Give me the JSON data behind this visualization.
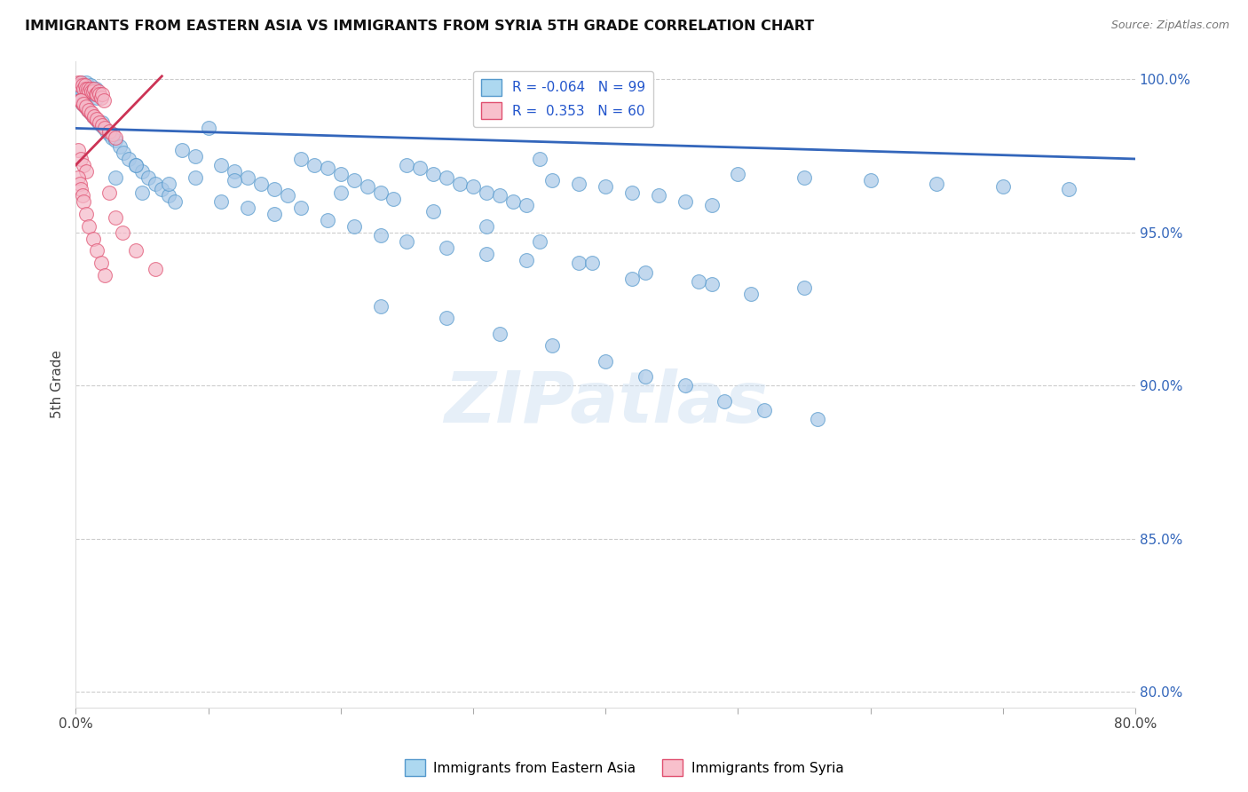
{
  "title": "IMMIGRANTS FROM EASTERN ASIA VS IMMIGRANTS FROM SYRIA 5TH GRADE CORRELATION CHART",
  "source": "Source: ZipAtlas.com",
  "ylabel": "5th Grade",
  "xlim": [
    0.0,
    0.8
  ],
  "ylim": [
    0.795,
    1.006
  ],
  "x_tick_pos": [
    0.0,
    0.1,
    0.2,
    0.3,
    0.4,
    0.5,
    0.6,
    0.7,
    0.8
  ],
  "x_tick_labels": [
    "0.0%",
    "",
    "",
    "",
    "",
    "",
    "",
    "",
    "80.0%"
  ],
  "y_tick_pos": [
    0.8,
    0.85,
    0.9,
    0.95,
    1.0
  ],
  "y_tick_labels": [
    "80.0%",
    "85.0%",
    "90.0%",
    "95.0%",
    "100.0%"
  ],
  "blue_R": "-0.064",
  "blue_N": "99",
  "pink_R": "0.353",
  "pink_N": "60",
  "blue_fill": "#a8c8e8",
  "blue_edge": "#5599cc",
  "pink_fill": "#f5b8c8",
  "pink_edge": "#e05070",
  "blue_line_color": "#3366bb",
  "pink_line_color": "#cc3355",
  "watermark": "ZIPatlas",
  "blue_x": [
    0.002,
    0.003,
    0.004,
    0.005,
    0.006,
    0.007,
    0.008,
    0.009,
    0.01,
    0.011,
    0.012,
    0.013,
    0.014,
    0.015,
    0.016,
    0.003,
    0.005,
    0.007,
    0.009,
    0.011,
    0.013,
    0.015,
    0.017,
    0.019,
    0.021,
    0.023,
    0.025,
    0.027,
    0.03,
    0.033,
    0.036,
    0.04,
    0.045,
    0.05,
    0.055,
    0.06,
    0.065,
    0.07,
    0.075,
    0.08,
    0.09,
    0.1,
    0.11,
    0.12,
    0.13,
    0.14,
    0.15,
    0.16,
    0.17,
    0.18,
    0.19,
    0.2,
    0.21,
    0.22,
    0.23,
    0.24,
    0.25,
    0.26,
    0.27,
    0.28,
    0.29,
    0.3,
    0.31,
    0.32,
    0.33,
    0.34,
    0.35,
    0.36,
    0.38,
    0.4,
    0.42,
    0.44,
    0.46,
    0.48,
    0.5,
    0.55,
    0.6,
    0.65,
    0.7,
    0.75,
    0.02,
    0.03,
    0.05,
    0.07,
    0.09,
    0.11,
    0.13,
    0.15,
    0.17,
    0.19,
    0.21,
    0.23,
    0.25,
    0.28,
    0.31,
    0.34,
    0.38,
    0.42,
    0.48,
    0.55
  ],
  "blue_y": [
    0.998,
    0.997,
    0.999,
    0.996,
    0.998,
    0.997,
    0.999,
    0.996,
    0.995,
    0.998,
    0.997,
    0.996,
    0.995,
    0.997,
    0.994,
    0.993,
    0.992,
    0.991,
    0.99,
    0.989,
    0.988,
    0.987,
    0.986,
    0.985,
    0.984,
    0.983,
    0.982,
    0.981,
    0.98,
    0.978,
    0.976,
    0.974,
    0.972,
    0.97,
    0.968,
    0.966,
    0.964,
    0.962,
    0.96,
    0.977,
    0.975,
    0.984,
    0.972,
    0.97,
    0.968,
    0.966,
    0.964,
    0.962,
    0.974,
    0.972,
    0.971,
    0.969,
    0.967,
    0.965,
    0.963,
    0.961,
    0.972,
    0.971,
    0.969,
    0.968,
    0.966,
    0.965,
    0.963,
    0.962,
    0.96,
    0.959,
    0.974,
    0.967,
    0.966,
    0.965,
    0.963,
    0.962,
    0.96,
    0.959,
    0.969,
    0.968,
    0.967,
    0.966,
    0.965,
    0.964,
    0.986,
    0.968,
    0.963,
    0.966,
    0.968,
    0.96,
    0.958,
    0.956,
    0.958,
    0.954,
    0.952,
    0.949,
    0.947,
    0.945,
    0.943,
    0.941,
    0.94,
    0.935,
    0.933,
    0.932
  ],
  "blue_y_outliers": [
    0.972,
    0.967,
    0.963,
    0.957,
    0.952,
    0.947,
    0.94,
    0.937,
    0.934,
    0.93,
    0.926,
    0.922,
    0.917,
    0.913,
    0.908,
    0.903,
    0.9,
    0.895,
    0.892,
    0.889
  ],
  "blue_x_outliers": [
    0.045,
    0.12,
    0.2,
    0.27,
    0.31,
    0.35,
    0.39,
    0.43,
    0.47,
    0.51,
    0.23,
    0.28,
    0.32,
    0.36,
    0.4,
    0.43,
    0.46,
    0.49,
    0.52,
    0.56
  ],
  "pink_x": [
    0.002,
    0.003,
    0.004,
    0.005,
    0.006,
    0.007,
    0.008,
    0.009,
    0.01,
    0.011,
    0.012,
    0.013,
    0.014,
    0.015,
    0.016,
    0.017,
    0.018,
    0.019,
    0.02,
    0.021,
    0.003,
    0.005,
    0.007,
    0.009,
    0.011,
    0.013,
    0.015,
    0.004,
    0.006,
    0.008,
    0.01,
    0.012,
    0.014,
    0.016,
    0.018,
    0.02,
    0.022,
    0.025,
    0.028,
    0.03,
    0.002,
    0.004,
    0.006,
    0.008,
    0.002,
    0.003,
    0.004,
    0.005,
    0.006,
    0.008,
    0.01,
    0.013,
    0.016,
    0.019,
    0.022,
    0.025,
    0.03,
    0.035,
    0.045,
    0.06
  ],
  "pink_y": [
    0.999,
    0.998,
    0.999,
    0.998,
    0.997,
    0.998,
    0.997,
    0.997,
    0.996,
    0.997,
    0.996,
    0.996,
    0.997,
    0.995,
    0.995,
    0.996,
    0.995,
    0.994,
    0.995,
    0.993,
    0.993,
    0.992,
    0.991,
    0.99,
    0.989,
    0.988,
    0.987,
    0.993,
    0.992,
    0.991,
    0.99,
    0.989,
    0.988,
    0.987,
    0.986,
    0.985,
    0.984,
    0.983,
    0.982,
    0.981,
    0.977,
    0.974,
    0.972,
    0.97,
    0.968,
    0.966,
    0.964,
    0.962,
    0.96,
    0.956,
    0.952,
    0.948,
    0.944,
    0.94,
    0.936,
    0.963,
    0.955,
    0.95,
    0.944,
    0.938
  ]
}
